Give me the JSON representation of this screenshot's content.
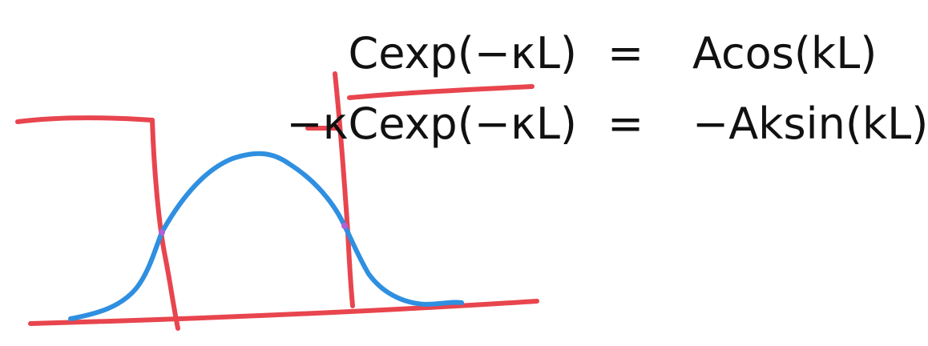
{
  "equations": [
    {
      "lhs": "Cexp(−κL)",
      "sign": "=",
      "rhs": "Acos(kL)"
    },
    {
      "lhs": "−κCexp(−κL)",
      "sign": "=",
      "rhs": "−Aksin(kL)"
    }
  ],
  "colors": {
    "background": "#ffffff",
    "text": "#111111",
    "pen_red": "#e8454e",
    "pen_blue": "#2f8fe0"
  }
}
